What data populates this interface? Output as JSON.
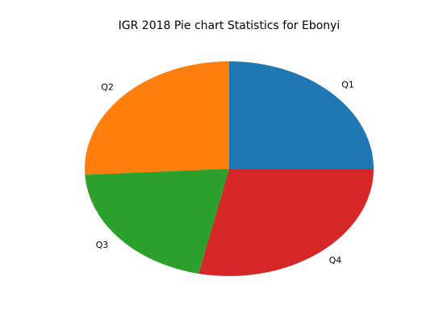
{
  "chart_data": {
    "type": "pie",
    "title": "IGR 2018 Pie chart Statistics for Ebonyi",
    "labels": [
      "Q1",
      "Q2",
      "Q3",
      "Q4"
    ],
    "values": [
      25.0,
      25.9,
      20.7,
      28.4
    ],
    "colors": [
      "#1f77b4",
      "#ff7f0e",
      "#2ca02c",
      "#d62728"
    ],
    "start_angle_deg": 0,
    "direction": "counterclockwise"
  }
}
